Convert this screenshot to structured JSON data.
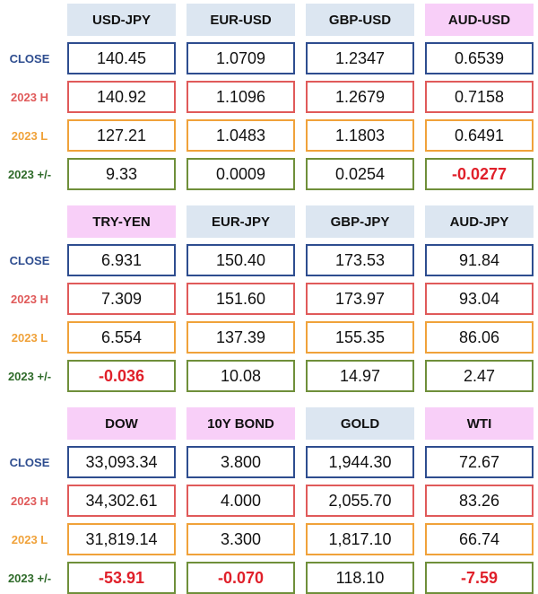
{
  "colors": {
    "header_blue": "#dce6f1",
    "header_pink": "#f8cff8",
    "close": "#2e4d8f",
    "high": "#e05a5a",
    "low": "#f0a23a",
    "change": "#6f8f3a",
    "negative": "#e0202a"
  },
  "row_labels": {
    "close": "CLOSE",
    "high": "2023 H",
    "low": "2023 L",
    "change": "2023 +/-"
  },
  "blocks": [
    {
      "headers": [
        {
          "label": "USD-JPY",
          "style": "blue"
        },
        {
          "label": "EUR-USD",
          "style": "blue"
        },
        {
          "label": "GBP-USD",
          "style": "blue"
        },
        {
          "label": "AUD-USD",
          "style": "pink"
        }
      ],
      "close": [
        "140.45",
        "1.0709",
        "1.2347",
        "0.6539"
      ],
      "high": [
        "140.92",
        "1.1096",
        "1.2679",
        "0.7158"
      ],
      "low": [
        "127.21",
        "1.0483",
        "1.1803",
        "0.6491"
      ],
      "change": [
        "9.33",
        "0.0009",
        "0.0254",
        "-0.0277"
      ]
    },
    {
      "headers": [
        {
          "label": "TRY-YEN",
          "style": "pink"
        },
        {
          "label": "EUR-JPY",
          "style": "blue"
        },
        {
          "label": "GBP-JPY",
          "style": "blue"
        },
        {
          "label": "AUD-JPY",
          "style": "blue"
        }
      ],
      "close": [
        "6.931",
        "150.40",
        "173.53",
        "91.84"
      ],
      "high": [
        "7.309",
        "151.60",
        "173.97",
        "93.04"
      ],
      "low": [
        "6.554",
        "137.39",
        "155.35",
        "86.06"
      ],
      "change": [
        "-0.036",
        "10.08",
        "14.97",
        "2.47"
      ]
    },
    {
      "headers": [
        {
          "label": "DOW",
          "style": "pink"
        },
        {
          "label": "10Y BOND",
          "style": "pink"
        },
        {
          "label": "GOLD",
          "style": "blue"
        },
        {
          "label": "WTI",
          "style": "pink"
        }
      ],
      "close": [
        "33,093.34",
        "3.800",
        "1,944.30",
        "72.67"
      ],
      "high": [
        "34,302.61",
        "4.000",
        "2,055.70",
        "83.26"
      ],
      "low": [
        "31,819.14",
        "3.300",
        "1,817.10",
        "66.74"
      ],
      "change": [
        "-53.91",
        "-0.070",
        "118.10",
        "-7.59"
      ]
    }
  ]
}
